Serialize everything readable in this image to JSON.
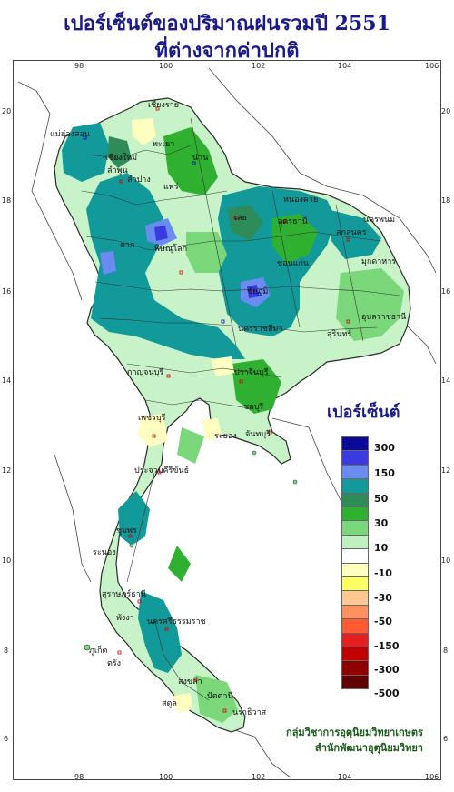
{
  "title": {
    "line1": "เปอร์เซ็นต์ของปริมาณฝนรวมปี  2551",
    "line2": "ที่ต่างจากค่าปกติ"
  },
  "axes": {
    "x_ticks": [
      "98",
      "100",
      "102",
      "104",
      "106"
    ],
    "y_ticks": [
      "20",
      "18",
      "16",
      "14",
      "12",
      "10",
      "8",
      "6"
    ]
  },
  "legend": {
    "title": "เปอร์เซ็นต์",
    "labels": [
      "300",
      "150",
      "50",
      "30",
      "10",
      "-10",
      "-30",
      "-50",
      "-150",
      "-300",
      "-500"
    ],
    "colors": [
      "#0a0a9a",
      "#3a3ae0",
      "#6a8cf0",
      "#129a9a",
      "#2e8c5a",
      "#30b030",
      "#7ad77a",
      "#c0f0c0",
      "#ffffff",
      "#ffffc0",
      "#ffff60",
      "#ffc890",
      "#ff9060",
      "#ff5a30",
      "#e61e1e",
      "#c00000",
      "#900000",
      "#600000"
    ]
  },
  "credit": {
    "line1": "กลุ่มวิชาการอุตุนิยมวิทยาเกษตร",
    "line2": "สำนักพัฒนาอุตุนิยมวิทยา"
  },
  "places": [
    {
      "name": "เชียงราย"
    },
    {
      "name": "แม่ฮ่องสอน"
    },
    {
      "name": "พะเยา"
    },
    {
      "name": "น่าน"
    },
    {
      "name": "เชียงใหม่"
    },
    {
      "name": "ลำพูน"
    },
    {
      "name": "ลำปาง"
    },
    {
      "name": "แพร่"
    },
    {
      "name": "หนองคาย"
    },
    {
      "name": "อุดรธานี"
    },
    {
      "name": "นครพนม"
    },
    {
      "name": "สกลนคร"
    },
    {
      "name": "เลย"
    },
    {
      "name": "มุกดาหาร"
    },
    {
      "name": "พิษณุโลก"
    },
    {
      "name": "ตาก"
    },
    {
      "name": "ขอนแก่น"
    },
    {
      "name": "ชัยภูมิ"
    },
    {
      "name": "อุบลราชธานี"
    },
    {
      "name": "นครราชสีมา"
    },
    {
      "name": "สุรินทร์"
    },
    {
      "name": "ปราจีนบุรี"
    },
    {
      "name": "กาญจนบุรี"
    },
    {
      "name": "ชลบุรี"
    },
    {
      "name": "จันทบุรี"
    },
    {
      "name": "ระยอง"
    },
    {
      "name": "เพชรบุรี"
    },
    {
      "name": "ประจวบคีรีขันธ์"
    },
    {
      "name": "ชุมพร"
    },
    {
      "name": "ระนอง"
    },
    {
      "name": "สุราษฎร์ธานี"
    },
    {
      "name": "พังงา"
    },
    {
      "name": "นครศรีธรรมราช"
    },
    {
      "name": "ภูเก็ต"
    },
    {
      "name": "ตรัง"
    },
    {
      "name": "สงขลา"
    },
    {
      "name": "ปัตตานี"
    },
    {
      "name": "นราธิวาส"
    },
    {
      "name": "สตูล"
    }
  ]
}
